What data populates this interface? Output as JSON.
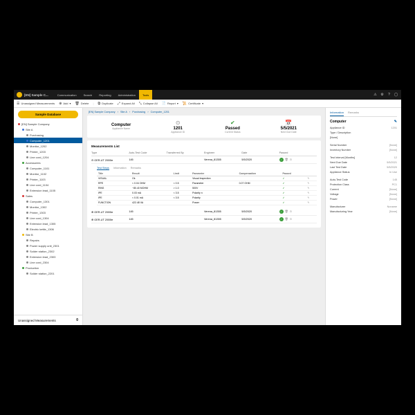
{
  "topnav": {
    "company": "[EN] Sample C...",
    "items": [
      "Communication",
      "Search",
      "Reporting",
      "Administration",
      "Tools"
    ],
    "active_index": 4
  },
  "toolbar": {
    "unassigned": "Unassigned Measurements",
    "add": "Add",
    "delete": "Delete",
    "duplicate": "Duplicate",
    "expand": "Expand All",
    "collapse": "Collapse All",
    "report": "Report",
    "certificate": "Certificate"
  },
  "sidebar": {
    "button": "Sample Database",
    "tree": [
      {
        "lvl": 1,
        "label": "[EN] Sample Company",
        "color": "red"
      },
      {
        "lvl": 2,
        "label": "Site A",
        "color": "blue"
      },
      {
        "lvl": 3,
        "label": "Purchasing",
        "color": "gray"
      },
      {
        "lvl": 3,
        "label": "Computer_1201",
        "color": "blue",
        "selected": true
      },
      {
        "lvl": 3,
        "label": "Monitor_1202",
        "color": "gray"
      },
      {
        "lvl": 3,
        "label": "Printer_1203",
        "color": "gray"
      },
      {
        "lvl": 3,
        "label": "Line cord_1204",
        "color": "gray"
      },
      {
        "lvl": 2,
        "label": "Accessories",
        "color": "green"
      },
      {
        "lvl": 3,
        "label": "Computer_1101",
        "color": "gray"
      },
      {
        "lvl": 3,
        "label": "Monitor_1102",
        "color": "gray"
      },
      {
        "lvl": 3,
        "label": "Printer_1103",
        "color": "gray"
      },
      {
        "lvl": 3,
        "label": "Line cord_1104",
        "color": "gray"
      },
      {
        "lvl": 3,
        "label": "Extension lead_1105",
        "color": "gray"
      },
      {
        "lvl": 2,
        "label": "Sales",
        "color": "red"
      },
      {
        "lvl": 3,
        "label": "Computer_1301",
        "color": "gray"
      },
      {
        "lvl": 3,
        "label": "Monitor_1302",
        "color": "gray"
      },
      {
        "lvl": 3,
        "label": "Printer_1303",
        "color": "gray"
      },
      {
        "lvl": 3,
        "label": "Line cord_1304",
        "color": "gray"
      },
      {
        "lvl": 3,
        "label": "Extension lead_1305",
        "color": "gray"
      },
      {
        "lvl": 3,
        "label": "Electric kettle_1306",
        "color": "gray"
      },
      {
        "lvl": 2,
        "label": "Site B",
        "color": "yellow"
      },
      {
        "lvl": 3,
        "label": "Repairs",
        "color": "gray"
      },
      {
        "lvl": 3,
        "label": "Power supply unit_2301",
        "color": "gray"
      },
      {
        "lvl": 3,
        "label": "Solder station_2302",
        "color": "gray"
      },
      {
        "lvl": 3,
        "label": "Extension lead_2303",
        "color": "gray"
      },
      {
        "lvl": 3,
        "label": "Line cord_2304",
        "color": "gray"
      },
      {
        "lvl": 2,
        "label": "Production",
        "color": "green"
      },
      {
        "lvl": 3,
        "label": "Solder station_2201",
        "color": "gray"
      }
    ],
    "bottom": {
      "label": "Unassigned Measurements",
      "count": "0"
    }
  },
  "breadcrumb": [
    "[EN] Sample Company",
    "Site A",
    "Purchasing",
    "Computer_1201"
  ],
  "summary": {
    "name": {
      "value": "Computer",
      "label": "Appliance Name"
    },
    "id": {
      "value": "1201",
      "label": "Appliance ID"
    },
    "status": {
      "value": "Passed",
      "label": "Current Status"
    },
    "nextdue": {
      "value": "5/5/2021",
      "label": "Next Due Date"
    }
  },
  "measurements": {
    "title": "Measurements List",
    "headers": [
      "Type",
      "Auto-Test Code",
      "Transferred By",
      "Engineer",
      "Date",
      "Passed"
    ],
    "rows": [
      {
        "type": "GER-UT 2000te",
        "code": "145",
        "by": "",
        "eng": "Verena_81355",
        "date": "5/5/2020",
        "passed": true,
        "expanded": true
      },
      {
        "type": "GER-UT 2000te",
        "code": "145",
        "by": "",
        "eng": "Verena_81355",
        "date": "5/5/2020",
        "passed": true
      },
      {
        "type": "GER-UT 2000te",
        "code": "145",
        "by": "",
        "eng": "Verena_81355",
        "date": "5/5/2020",
        "passed": true
      }
    ],
    "subtabs": [
      "Test Steps",
      "Information",
      "Remarks"
    ],
    "subtab_active": 0,
    "steps": {
      "headers": [
        "Title",
        "Result",
        "Limit",
        "Parameter",
        "Compensation",
        "Passed",
        ""
      ],
      "rows": [
        [
          "VISUAL",
          "Ok",
          "",
          "Visual Inspection",
          "",
          "✓",
          "✎"
        ],
        [
          "RPE",
          "< 0.04 OHM",
          "< 0.5",
          "Parameter",
          "0.07 OHM",
          "✓",
          "✎"
        ],
        [
          "RINS",
          "~80.40 MOHM",
          "> 1.0",
          "500V",
          "",
          "✓",
          "✎"
        ],
        [
          "IPE",
          "0.03 mA",
          "< 3.5",
          "Polarity n",
          "",
          "✓",
          "✎"
        ],
        [
          "IPE",
          "< 0.01 mA",
          "< 3.5",
          "Polarity",
          "",
          "✓",
          "✎"
        ],
        [
          "FUNCTION",
          "422.48 VA",
          "",
          "Power",
          "",
          "✓",
          "✎"
        ]
      ]
    }
  },
  "info": {
    "tabs": [
      "Information",
      "Remarks"
    ],
    "title": "Computer",
    "rows": [
      {
        "k": "Appliance ID",
        "v": "1201"
      },
      {
        "k": "Type / Description",
        "v": ""
      },
      {
        "k": "[None]",
        "v": ""
      },
      {
        "sep": true
      },
      {
        "k": "Serial Number",
        "v": "[None]"
      },
      {
        "k": "Inventory Number",
        "v": "[None]"
      },
      {
        "sep": true
      },
      {
        "k": "Test Interval [Months]",
        "v": "12"
      },
      {
        "k": "Next Due Date",
        "v": "5/5/2021"
      },
      {
        "k": "Last Test Date",
        "v": "5/5/2020"
      },
      {
        "k": "Appliance Status",
        "v": "In Use"
      },
      {
        "sep": true
      },
      {
        "k": "Auto-Test Code",
        "v": "145"
      },
      {
        "k": "Protection Class",
        "v": "PC1"
      },
      {
        "k": "Current",
        "v": "[None]"
      },
      {
        "k": "Voltage",
        "v": "[None]"
      },
      {
        "k": "Power",
        "v": "[None]"
      },
      {
        "sep": true
      },
      {
        "k": "Manufacturer",
        "v": "Noname"
      },
      {
        "k": "Manufacturing Year",
        "v": "[None]"
      }
    ]
  }
}
